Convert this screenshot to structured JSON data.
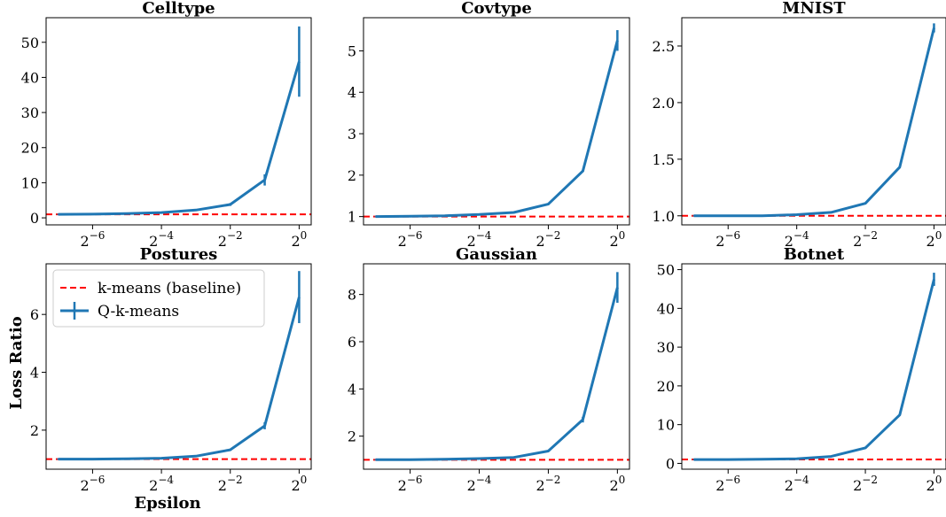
{
  "figure": {
    "ylabel": "Loss Ratio",
    "xlabel": "Epsilon"
  },
  "legend": {
    "placement": "top-left of Postures panel",
    "entries": [
      {
        "label": "k-means (baseline)",
        "style": "dashed",
        "color": "#ff0000"
      },
      {
        "label": "Q-k-means",
        "style": "solid-errorbar",
        "color": "#1f77b4"
      }
    ]
  },
  "colors": {
    "series": "#1f77b4",
    "baseline": "#ff0000"
  },
  "chart_data": [
    {
      "type": "line",
      "title": "Celltype",
      "log_x_base": 2,
      "x": [
        0.0078125,
        0.015625,
        0.03125,
        0.0625,
        0.125,
        0.25,
        0.5,
        1
      ],
      "xticks": [
        0.015625,
        0.0625,
        0.25,
        1
      ],
      "xtick_labels": [
        {
          "base": "2",
          "exp": "−6"
        },
        {
          "base": "2",
          "exp": "−4"
        },
        {
          "base": "2",
          "exp": "−2"
        },
        {
          "base": "2",
          "exp": "0"
        }
      ],
      "ylim": [
        -2,
        57
      ],
      "yticks": [
        0,
        10,
        20,
        30,
        40,
        50
      ],
      "ytick_labels": [
        "0",
        "10",
        "20",
        "30",
        "40",
        "50"
      ],
      "series": [
        {
          "name": "Q-k-means",
          "values": [
            1.0,
            1.05,
            1.2,
            1.5,
            2.2,
            3.8,
            10.8,
            44.5
          ],
          "errors": [
            0,
            0,
            0,
            0.1,
            0.2,
            0.4,
            1.6,
            10
          ]
        },
        {
          "name": "k-means (baseline)",
          "constant": 1
        }
      ]
    },
    {
      "type": "line",
      "title": "Covtype",
      "log_x_base": 2,
      "x": [
        0.0078125,
        0.015625,
        0.03125,
        0.0625,
        0.125,
        0.25,
        0.5,
        1
      ],
      "xticks": [
        0.015625,
        0.0625,
        0.25,
        1
      ],
      "xtick_labels": [
        {
          "base": "2",
          "exp": "−6"
        },
        {
          "base": "2",
          "exp": "−4"
        },
        {
          "base": "2",
          "exp": "−2"
        },
        {
          "base": "2",
          "exp": "0"
        }
      ],
      "ylim": [
        0.8,
        5.8
      ],
      "yticks": [
        1,
        2,
        3,
        4,
        5
      ],
      "ytick_labels": [
        "1",
        "2",
        "3",
        "4",
        "5"
      ],
      "series": [
        {
          "name": "Q-k-means",
          "values": [
            1.0,
            1.01,
            1.02,
            1.05,
            1.1,
            1.3,
            2.1,
            5.25
          ],
          "errors": [
            0,
            0,
            0,
            0,
            0,
            0.01,
            0.02,
            0.25
          ]
        },
        {
          "name": "k-means (baseline)",
          "constant": 1
        }
      ]
    },
    {
      "type": "line",
      "title": "MNIST",
      "log_x_base": 2,
      "x": [
        0.0078125,
        0.015625,
        0.03125,
        0.0625,
        0.125,
        0.25,
        0.5,
        1
      ],
      "xticks": [
        0.015625,
        0.0625,
        0.25,
        1
      ],
      "xtick_labels": [
        {
          "base": "2",
          "exp": "−6"
        },
        {
          "base": "2",
          "exp": "−4"
        },
        {
          "base": "2",
          "exp": "−2"
        },
        {
          "base": "2",
          "exp": "0"
        }
      ],
      "ylim": [
        0.92,
        2.75
      ],
      "yticks": [
        1.0,
        1.5,
        2.0,
        2.5
      ],
      "ytick_labels": [
        "1.0",
        "1.5",
        "2.0",
        "2.5"
      ],
      "series": [
        {
          "name": "Q-k-means",
          "values": [
            1.0,
            1.0,
            1.0,
            1.01,
            1.03,
            1.11,
            1.43,
            2.66
          ],
          "errors": [
            0,
            0,
            0,
            0,
            0,
            0.005,
            0.01,
            0.04
          ]
        },
        {
          "name": "k-means (baseline)",
          "constant": 1
        }
      ]
    },
    {
      "type": "line",
      "title": "Postures",
      "log_x_base": 2,
      "x": [
        0.0078125,
        0.015625,
        0.03125,
        0.0625,
        0.125,
        0.25,
        0.5,
        1
      ],
      "xticks": [
        0.015625,
        0.0625,
        0.25,
        1
      ],
      "xtick_labels": [
        {
          "base": "2",
          "exp": "−6"
        },
        {
          "base": "2",
          "exp": "−4"
        },
        {
          "base": "2",
          "exp": "−2"
        },
        {
          "base": "2",
          "exp": "0"
        }
      ],
      "ylim": [
        0.65,
        7.75
      ],
      "yticks": [
        2,
        4,
        6
      ],
      "ytick_labels": [
        "2",
        "4",
        "6"
      ],
      "series": [
        {
          "name": "Q-k-means",
          "values": [
            1.0,
            1.0,
            1.01,
            1.03,
            1.1,
            1.32,
            2.15,
            6.6
          ],
          "errors": [
            0,
            0,
            0,
            0,
            0.01,
            0.02,
            0.12,
            0.9
          ]
        },
        {
          "name": "k-means (baseline)",
          "constant": 1
        }
      ]
    },
    {
      "type": "line",
      "title": "Gaussian",
      "log_x_base": 2,
      "x": [
        0.0078125,
        0.015625,
        0.03125,
        0.0625,
        0.125,
        0.25,
        0.5,
        1
      ],
      "xticks": [
        0.015625,
        0.0625,
        0.25,
        1
      ],
      "xtick_labels": [
        {
          "base": "2",
          "exp": "−6"
        },
        {
          "base": "2",
          "exp": "−4"
        },
        {
          "base": "2",
          "exp": "−2"
        },
        {
          "base": "2",
          "exp": "0"
        }
      ],
      "ylim": [
        0.6,
        9.3
      ],
      "yticks": [
        2,
        4,
        6,
        8
      ],
      "ytick_labels": [
        "2",
        "4",
        "6",
        "8"
      ],
      "series": [
        {
          "name": "Q-k-means",
          "values": [
            1.0,
            1.0,
            1.02,
            1.05,
            1.1,
            1.37,
            2.7,
            8.3
          ],
          "errors": [
            0,
            0,
            0,
            0,
            0,
            0.02,
            0.12,
            0.65
          ]
        },
        {
          "name": "k-means (baseline)",
          "constant": 1
        }
      ]
    },
    {
      "type": "line",
      "title": "Botnet",
      "log_x_base": 2,
      "x": [
        0.0078125,
        0.015625,
        0.03125,
        0.0625,
        0.125,
        0.25,
        0.5,
        1
      ],
      "xticks": [
        0.015625,
        0.0625,
        0.25,
        1
      ],
      "xtick_labels": [
        {
          "base": "2",
          "exp": "−6"
        },
        {
          "base": "2",
          "exp": "−4"
        },
        {
          "base": "2",
          "exp": "−2"
        },
        {
          "base": "2",
          "exp": "0"
        }
      ],
      "ylim": [
        -1.5,
        51.5
      ],
      "yticks": [
        0,
        10,
        20,
        30,
        40,
        50
      ],
      "ytick_labels": [
        "0",
        "10",
        "20",
        "30",
        "40",
        "50"
      ],
      "series": [
        {
          "name": "Q-k-means",
          "values": [
            1.0,
            1.0,
            1.05,
            1.2,
            1.8,
            4.0,
            12.5,
            47.5
          ],
          "errors": [
            0,
            0,
            0,
            0,
            0.05,
            0.1,
            0.2,
            1.7
          ]
        },
        {
          "name": "k-means (baseline)",
          "constant": 1
        }
      ]
    }
  ]
}
